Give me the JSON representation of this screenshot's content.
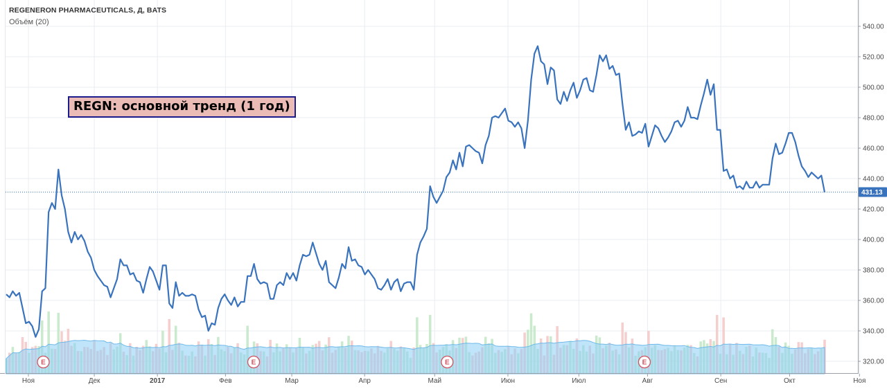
{
  "header": {
    "title": "REGENERON PHARMACEUTICALS, Д, BATS",
    "volume_label": "Объём (20)"
  },
  "annotation": "REGN: основной тренд (1 год)",
  "last_price_label": "431.13",
  "event_marker_label": "E",
  "colors": {
    "price_line": "#3a73bd",
    "volume_up": "#bfe6c4",
    "volume_down": "#f3c6c6",
    "volume_ma_fill": "#8ccdf5",
    "gridline": "#e9edf2",
    "last_price_tag": "#3a73bd",
    "event_marker": "#d0535f"
  },
  "chart_data": {
    "type": "line",
    "title": "REGENERON PHARMACEUTICALS, Д, BATS",
    "subtitle": "Объём (20)",
    "xlabel": "",
    "ylabel": "",
    "ylim": [
      315,
      545
    ],
    "y_ticks": [
      320,
      340,
      360,
      380,
      400,
      420,
      440,
      460,
      480,
      500,
      520,
      540
    ],
    "y_tick_labels": [
      "320.00",
      "340.00",
      "360.00",
      "380.00",
      "400.00",
      "420.00",
      "440.00",
      "460.00",
      "480.00",
      "500.00",
      "520.00",
      "540.00"
    ],
    "x_ticks": [
      "Ноя",
      "Дек",
      "2017",
      "Фев",
      "Мар",
      "Апр",
      "Май",
      "Июн",
      "Июл",
      "Авг",
      "Сен",
      "Окт",
      "Ноя"
    ],
    "last_price": 431.13,
    "grid": true,
    "legend": "none",
    "series": [
      {
        "values": [
          364,
          362,
          366,
          363,
          365,
          355,
          345,
          346,
          343,
          336,
          341,
          366,
          368,
          418,
          424,
          420,
          446,
          429,
          420,
          405,
          398,
          405,
          400,
          403,
          399,
          392,
          388,
          380,
          376,
          373,
          370,
          369,
          362,
          368,
          374,
          387,
          383,
          383,
          377,
          378,
          373,
          372,
          365,
          374,
          382,
          379,
          373,
          367,
          383,
          383,
          358,
          355,
          372,
          363,
          365,
          363,
          363,
          364,
          363,
          354,
          349,
          350,
          340,
          345,
          344,
          355,
          361,
          364,
          360,
          357,
          362,
          356,
          359,
          359,
          376,
          376,
          384,
          374,
          371,
          372,
          371,
          361,
          361,
          370,
          372,
          370,
          378,
          374,
          378,
          373,
          383,
          390,
          389,
          390,
          398,
          391,
          384,
          380,
          386,
          372,
          370,
          368,
          375,
          384,
          381,
          395,
          386,
          387,
          383,
          382,
          377,
          380,
          377,
          374,
          368,
          367,
          370,
          374,
          367,
          372,
          374,
          366,
          371,
          372,
          372,
          367,
          390,
          398,
          402,
          407,
          435,
          428,
          424,
          428,
          432,
          441,
          444,
          452,
          446,
          457,
          448,
          461,
          462,
          460,
          458,
          457,
          450,
          462,
          468,
          480,
          481,
          480,
          483,
          486,
          478,
          477,
          474,
          477,
          473,
          460,
          478,
          505,
          522,
          527,
          517,
          515,
          502,
          513,
          511,
          492,
          489,
          497,
          491,
          498,
          503,
          493,
          498,
          505,
          506,
          498,
          497,
          508,
          521,
          517,
          521,
          512,
          514,
          508,
          509,
          489,
          472,
          477,
          468,
          469,
          471,
          470,
          476,
          461,
          468,
          475,
          473,
          468,
          464,
          467,
          471,
          477,
          478,
          474,
          478,
          487,
          480,
          480,
          479,
          488,
          496,
          505,
          495,
          502,
          472,
          472,
          445,
          446,
          440,
          442,
          434,
          435,
          433,
          438,
          434,
          434,
          438,
          434,
          436,
          436,
          436,
          453,
          463,
          456,
          457,
          463,
          470,
          470,
          464,
          455,
          448,
          445,
          441,
          444,
          442,
          440,
          442,
          431
        ]
      }
    ],
    "volume": {
      "up_color_meaning": "up day",
      "down_color_meaning": "down day",
      "moving_average_period": 20
    },
    "event_markers": [
      "E",
      "E",
      "E",
      "E"
    ]
  }
}
